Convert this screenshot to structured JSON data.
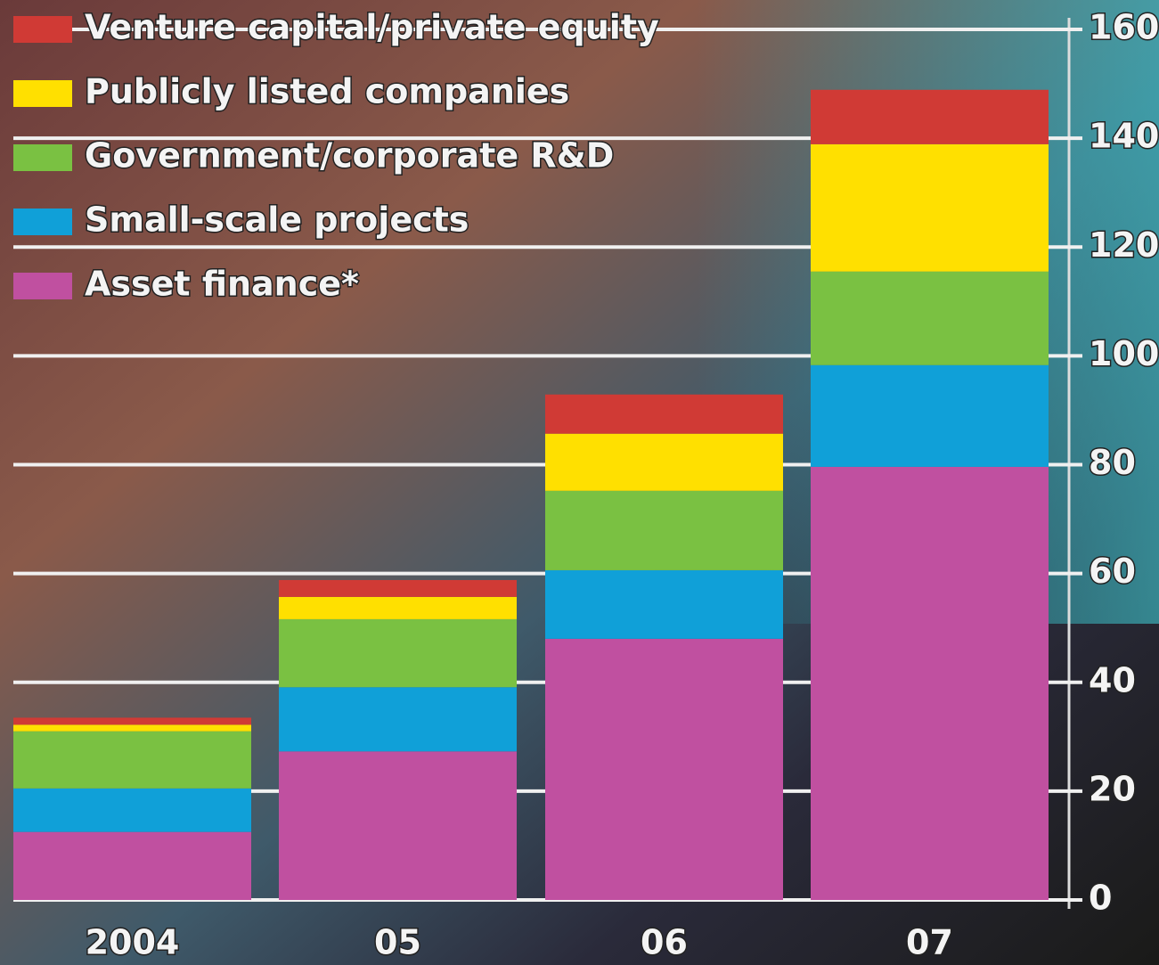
{
  "chart_data": {
    "type": "bar",
    "stacked": true,
    "categories": [
      "2004",
      "05",
      "06",
      "07"
    ],
    "series": [
      {
        "name": "Asset finance*",
        "color": "#c050a0",
        "values": [
          12.5,
          27.3,
          48.0,
          79.6
        ]
      },
      {
        "name": "Small-scale projects",
        "color": "#10a0d8",
        "values": [
          8.0,
          11.8,
          12.6,
          18.7
        ]
      },
      {
        "name": "Government/corporate R&D",
        "color": "#7ac142",
        "values": [
          10.5,
          12.5,
          14.6,
          17.2
        ]
      },
      {
        "name": "Publicly listed companies",
        "color": "#ffe000",
        "values": [
          1.2,
          4.1,
          10.5,
          23.4
        ]
      },
      {
        "name": "Venture capital/private equity",
        "color": "#d03a35",
        "values": [
          1.3,
          3.1,
          7.2,
          10.0
        ]
      }
    ],
    "ylim": [
      0,
      160
    ],
    "yticks": [
      0,
      20,
      40,
      60,
      80,
      100,
      120,
      140,
      160
    ],
    "grid": true
  }
}
